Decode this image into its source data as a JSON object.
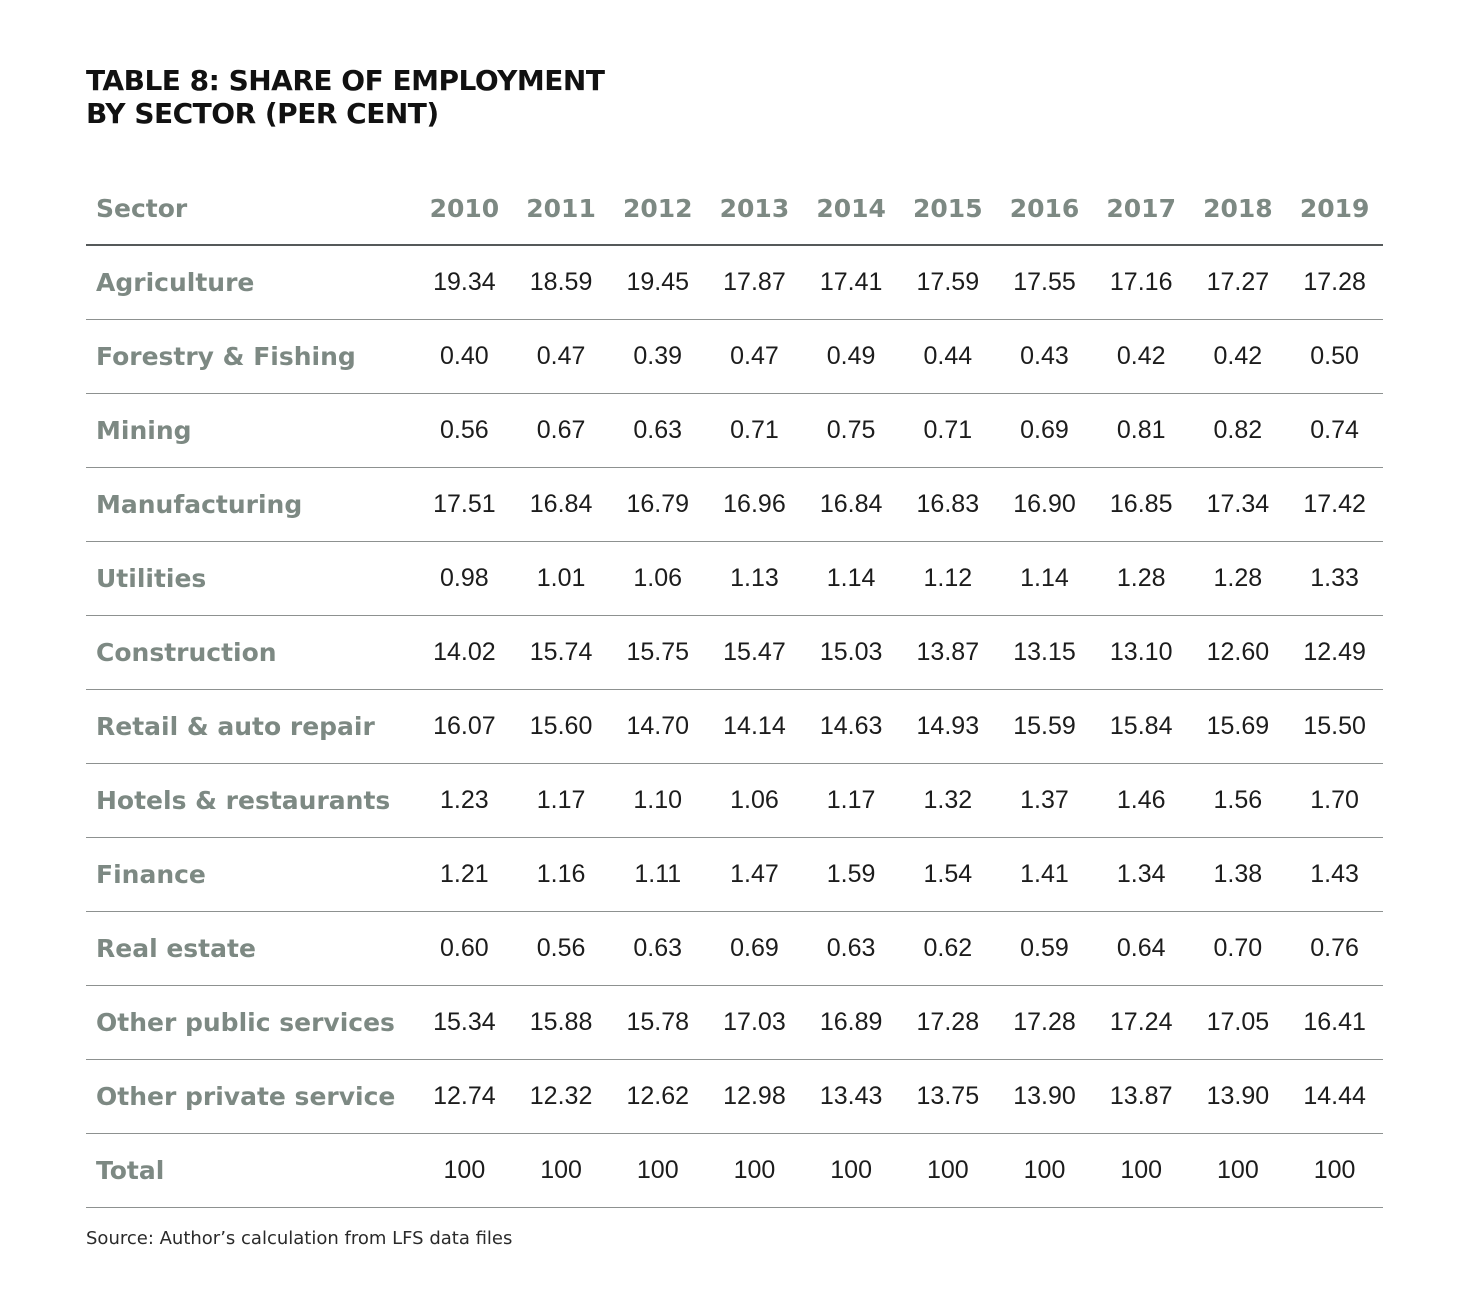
{
  "title": {
    "line1": "TABLE 8: SHARE OF EMPLOYMENT",
    "line2": "BY SECTOR (PER CENT)"
  },
  "table": {
    "sector_header": "Sector",
    "years": [
      "2010",
      "2011",
      "2012",
      "2013",
      "2014",
      "2015",
      "2016",
      "2017",
      "2018",
      "2019"
    ],
    "rows": [
      {
        "sector": "Agriculture",
        "values": [
          "19.34",
          "18.59",
          "19.45",
          "17.87",
          "17.41",
          "17.59",
          "17.55",
          "17.16",
          "17.27",
          "17.28"
        ]
      },
      {
        "sector": "Forestry & Fishing",
        "values": [
          "0.40",
          "0.47",
          "0.39",
          "0.47",
          "0.49",
          "0.44",
          "0.43",
          "0.42",
          "0.42",
          "0.50"
        ]
      },
      {
        "sector": "Mining",
        "values": [
          "0.56",
          "0.67",
          "0.63",
          "0.71",
          "0.75",
          "0.71",
          "0.69",
          "0.81",
          "0.82",
          "0.74"
        ]
      },
      {
        "sector": "Manufacturing",
        "values": [
          "17.51",
          "16.84",
          "16.79",
          "16.96",
          "16.84",
          "16.83",
          "16.90",
          "16.85",
          "17.34",
          "17.42"
        ]
      },
      {
        "sector": "Utilities",
        "values": [
          "0.98",
          "1.01",
          "1.06",
          "1.13",
          "1.14",
          "1.12",
          "1.14",
          "1.28",
          "1.28",
          "1.33"
        ]
      },
      {
        "sector": "Construction",
        "values": [
          "14.02",
          "15.74",
          "15.75",
          "15.47",
          "15.03",
          "13.87",
          "13.15",
          "13.10",
          "12.60",
          "12.49"
        ]
      },
      {
        "sector": "Retail & auto repair",
        "values": [
          "16.07",
          "15.60",
          "14.70",
          "14.14",
          "14.63",
          "14.93",
          "15.59",
          "15.84",
          "15.69",
          "15.50"
        ]
      },
      {
        "sector": "Hotels & restaurants",
        "values": [
          "1.23",
          "1.17",
          "1.10",
          "1.06",
          "1.17",
          "1.32",
          "1.37",
          "1.46",
          "1.56",
          "1.70"
        ]
      },
      {
        "sector": "Finance",
        "values": [
          "1.21",
          "1.16",
          "1.11",
          "1.47",
          "1.59",
          "1.54",
          "1.41",
          "1.34",
          "1.38",
          "1.43"
        ]
      },
      {
        "sector": "Real estate",
        "values": [
          "0.60",
          "0.56",
          "0.63",
          "0.69",
          "0.63",
          "0.62",
          "0.59",
          "0.64",
          "0.70",
          "0.76"
        ]
      },
      {
        "sector": "Other public services",
        "values": [
          "15.34",
          "15.88",
          "15.78",
          "17.03",
          "16.89",
          "17.28",
          "17.28",
          "17.24",
          "17.05",
          "16.41"
        ]
      },
      {
        "sector": "Other private service",
        "values": [
          "12.74",
          "12.32",
          "12.62",
          "12.98",
          "13.43",
          "13.75",
          "13.90",
          "13.87",
          "13.90",
          "14.44"
        ]
      },
      {
        "sector": "Total",
        "values": [
          "100",
          "100",
          "100",
          "100",
          "100",
          "100",
          "100",
          "100",
          "100",
          "100"
        ]
      }
    ]
  },
  "source": "Source: Author’s calculation from LFS data files",
  "colors": {
    "sector_label": "#7d8983",
    "header_rule": "#55595a",
    "row_rule": "#8d9190",
    "value_text": "#1c1c1c",
    "title_text": "#111111"
  }
}
